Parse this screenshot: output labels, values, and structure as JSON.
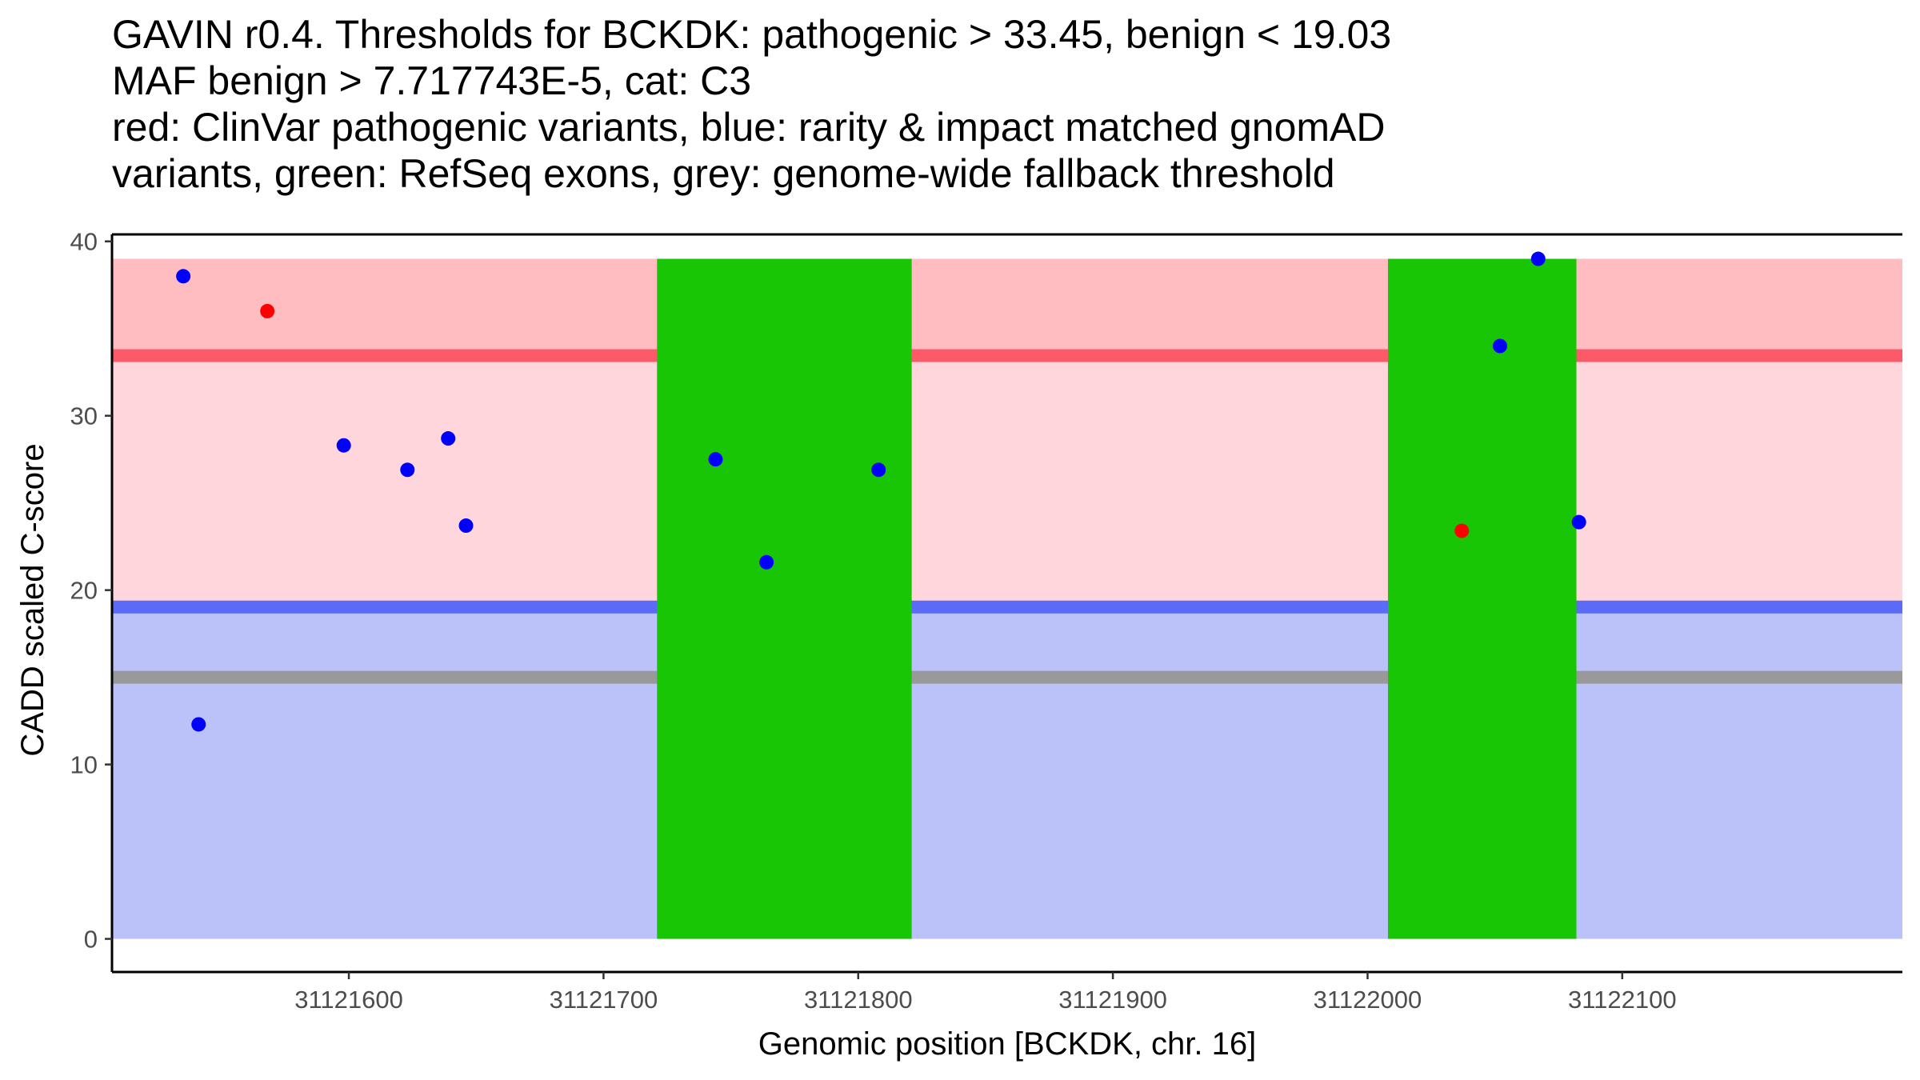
{
  "chart_data": {
    "type": "scatter",
    "title_lines": [
      "GAVIN r0.4. Thresholds for BCKDK: pathogenic > 33.45, benign < 19.03",
      "MAF benign > 7.717743E-5, cat: C3",
      "red: ClinVar pathogenic variants, blue: rarity & impact matched gnomAD",
      "variants, green: RefSeq exons, grey: genome-wide fallback threshold"
    ],
    "xlabel": "Genomic position [BCKDK, chr. 16]",
    "ylabel": "CADD scaled C-score",
    "xlim": [
      31121507,
      31122210
    ],
    "ylim": [
      -1.9,
      40.4
    ],
    "x_ticks": [
      31121600,
      31121700,
      31121800,
      31121900,
      31122000,
      31122100
    ],
    "x_tick_labels": [
      "31121600",
      "31121700",
      "31121800",
      "31121900",
      "31122000",
      "31122100"
    ],
    "y_ticks": [
      0,
      10,
      20,
      30,
      40
    ],
    "y_tick_labels": [
      "0",
      "10",
      "20",
      "30",
      "40"
    ],
    "grid": false,
    "bands": [
      {
        "name": "benign-band",
        "y0": 0,
        "y1": 19.03,
        "color": "#bbc2fa"
      },
      {
        "name": "intermediate-band",
        "y0": 19.03,
        "y1": 33.45,
        "color": "#ffd6db"
      },
      {
        "name": "pathogenic-band",
        "y0": 33.45,
        "y1": 39,
        "color": "#ffbdc2"
      }
    ],
    "thresholds": [
      {
        "name": "pathogenic-threshold-line",
        "y": 33.45,
        "color": "#fd5a69"
      },
      {
        "name": "benign-threshold-line",
        "y": 19.03,
        "color": "#5a6bf7"
      },
      {
        "name": "fallback-threshold-line",
        "y": 15,
        "color": "#999999"
      }
    ],
    "exons": [
      {
        "start": 31121721,
        "end": 31121821,
        "y0": 0,
        "y1": 39,
        "color": "#19c605"
      },
      {
        "start": 31122008,
        "end": 31122082,
        "y0": 0,
        "y1": 39,
        "color": "#19c605"
      }
    ],
    "series": [
      {
        "name": "ClinVar pathogenic variants",
        "color": "#ff0000",
        "points": [
          {
            "x": 31121568,
            "y": 36
          },
          {
            "x": 31122037,
            "y": 23.4
          }
        ]
      },
      {
        "name": "rarity & impact matched gnomAD variants",
        "color": "#0000ff",
        "points": [
          {
            "x": 31121535,
            "y": 38
          },
          {
            "x": 31121541,
            "y": 12.3
          },
          {
            "x": 31121598,
            "y": 28.3
          },
          {
            "x": 31121623,
            "y": 26.9
          },
          {
            "x": 31121639,
            "y": 28.7
          },
          {
            "x": 31121646,
            "y": 23.7
          },
          {
            "x": 31121744,
            "y": 27.5
          },
          {
            "x": 31121764,
            "y": 21.6
          },
          {
            "x": 31121808,
            "y": 26.9
          },
          {
            "x": 31122052,
            "y": 34
          },
          {
            "x": 31122067,
            "y": 39
          },
          {
            "x": 31122083,
            "y": 23.9
          }
        ]
      }
    ]
  }
}
